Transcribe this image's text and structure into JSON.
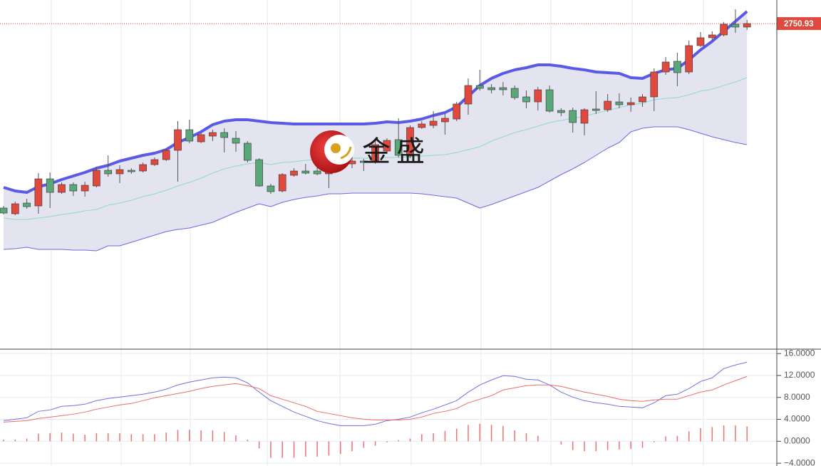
{
  "chart_data": [
    {
      "type": "candlestick",
      "ylim": [
        2294,
        2784
      ],
      "up_color": "#e0493e",
      "down_color": "#5aa77a",
      "open": [
        2492,
        2484,
        2499,
        2495,
        2533,
        2514,
        2525,
        2516,
        2523,
        2545,
        2540,
        2545,
        2544,
        2553,
        2560,
        2573,
        2602,
        2585,
        2593,
        2598,
        2590,
        2583,
        2560,
        2523,
        2516,
        2538,
        2544,
        2544,
        2540,
        2555,
        2554,
        2558,
        2557,
        2572,
        2588,
        2565,
        2605,
        2608,
        2613,
        2617,
        2638,
        2664,
        2661,
        2661,
        2660,
        2648,
        2641,
        2658,
        2629,
        2629,
        2611,
        2631,
        2630,
        2641,
        2637,
        2641,
        2648,
        2683,
        2698,
        2683,
        2720,
        2731,
        2735,
        2750,
        2746
      ],
      "high": [
        2495,
        2501,
        2505,
        2541,
        2542,
        2528,
        2528,
        2529,
        2550,
        2566,
        2552,
        2548,
        2556,
        2563,
        2576,
        2614,
        2616,
        2598,
        2602,
        2604,
        2600,
        2586,
        2562,
        2526,
        2541,
        2548,
        2554,
        2552,
        2566,
        2560,
        2564,
        2561,
        2589,
        2590,
        2618,
        2608,
        2614,
        2628,
        2624,
        2641,
        2674,
        2686,
        2666,
        2669,
        2664,
        2657,
        2662,
        2664,
        2632,
        2633,
        2632,
        2656,
        2652,
        2653,
        2647,
        2652,
        2688,
        2704,
        2710,
        2727,
        2739,
        2740,
        2753,
        2771,
        2756
      ],
      "low": [
        2483,
        2482,
        2491,
        2484,
        2492,
        2512,
        2509,
        2508,
        2521,
        2536,
        2527,
        2540,
        2542,
        2551,
        2558,
        2529,
        2583,
        2583,
        2586,
        2570,
        2571,
        2556,
        2522,
        2512,
        2514,
        2536,
        2539,
        2538,
        2520,
        2548,
        2548,
        2544,
        2554,
        2570,
        2563,
        2562,
        2603,
        2604,
        2595,
        2614,
        2623,
        2657,
        2653,
        2650,
        2644,
        2632,
        2629,
        2626,
        2621,
        2598,
        2594,
        2624,
        2627,
        2632,
        2627,
        2634,
        2628,
        2679,
        2663,
        2680,
        2718,
        2727,
        2733,
        2738,
        2742
      ],
      "close": [
        2485,
        2498,
        2494,
        2533,
        2514,
        2525,
        2516,
        2524,
        2545,
        2540,
        2546,
        2543,
        2553,
        2560,
        2573,
        2602,
        2586,
        2595,
        2598,
        2591,
        2583,
        2559,
        2523,
        2515,
        2539,
        2544,
        2541,
        2540,
        2555,
        2553,
        2558,
        2556,
        2581,
        2587,
        2566,
        2605,
        2610,
        2614,
        2618,
        2638,
        2664,
        2660,
        2658,
        2658,
        2647,
        2641,
        2658,
        2628,
        2626,
        2612,
        2630,
        2629,
        2642,
        2637,
        2640,
        2648,
        2683,
        2697,
        2682,
        2720,
        2731,
        2735,
        2750,
        2746,
        2750.93
      ],
      "band_fill": "#e4e4f1",
      "series": [
        {
          "color": "#5a5ae6",
          "style": "thick",
          "values": [
            2521,
            2516,
            2514,
            2522,
            2526,
            2532,
            2537,
            2542,
            2548,
            2552,
            2558,
            2562,
            2566,
            2569,
            2574,
            2584,
            2591,
            2599,
            2609,
            2614,
            2616,
            2616,
            2614,
            2612,
            2611,
            2610,
            2610,
            2610,
            2610,
            2610,
            2610,
            2610,
            2611,
            2613,
            2612,
            2614,
            2617,
            2622,
            2626,
            2634,
            2649,
            2664,
            2674,
            2681,
            2686,
            2689,
            2693,
            2693,
            2691,
            2688,
            2686,
            2683,
            2682,
            2681,
            2675,
            2674,
            2681,
            2686,
            2688,
            2700,
            2714,
            2726,
            2740,
            2754,
            2768
          ]
        },
        {
          "color": "#8fd9c6",
          "style": "thin",
          "values": [
            2478,
            2476,
            2476,
            2478,
            2480,
            2483,
            2485,
            2488,
            2490,
            2496,
            2499,
            2503,
            2508,
            2512,
            2517,
            2523,
            2528,
            2534,
            2541,
            2547,
            2551,
            2554,
            2556,
            2553,
            2556,
            2557,
            2559,
            2560,
            2561,
            2561,
            2562,
            2562,
            2562,
            2563,
            2563,
            2564,
            2565,
            2566,
            2567,
            2570,
            2574,
            2578,
            2586,
            2592,
            2598,
            2602,
            2607,
            2612,
            2615,
            2618,
            2621,
            2625,
            2629,
            2633,
            2637,
            2639,
            2644,
            2646,
            2647,
            2651,
            2656,
            2659,
            2664,
            2669,
            2675
          ]
        },
        {
          "color": "#6a6ae0",
          "style": "thin",
          "values": [
            2434,
            2435,
            2437,
            2434,
            2434,
            2434,
            2433,
            2433,
            2432,
            2439,
            2439,
            2444,
            2449,
            2454,
            2459,
            2462,
            2464,
            2468,
            2472,
            2479,
            2486,
            2492,
            2498,
            2494,
            2500,
            2504,
            2507,
            2509,
            2512,
            2512,
            2513,
            2513,
            2513,
            2513,
            2513,
            2513,
            2512,
            2510,
            2508,
            2506,
            2499,
            2492,
            2497,
            2503,
            2509,
            2515,
            2521,
            2530,
            2539,
            2547,
            2556,
            2566,
            2576,
            2584,
            2599,
            2604,
            2606,
            2606,
            2606,
            2602,
            2597,
            2592,
            2588,
            2584,
            2581
          ]
        }
      ],
      "price_line": 2750.93,
      "price_line_color": "#e0493e",
      "watermark": "金盛"
    },
    {
      "type": "macd",
      "ylim": [
        -4.5,
        16.8
      ],
      "yticks": [
        {
          "value": 16,
          "label": "16.0000"
        },
        {
          "value": 12,
          "label": "12.0000"
        },
        {
          "value": 8,
          "label": "8.0000"
        },
        {
          "value": 4,
          "label": "4.0000"
        },
        {
          "value": 0,
          "label": "0.0000"
        },
        {
          "value": -4,
          "label": "−4.0000"
        }
      ],
      "series": [
        {
          "color": "#7070e0",
          "style": "line",
          "values": [
            3.77,
            4.03,
            4.29,
            5.46,
            5.72,
            6.37,
            6.5,
            6.76,
            7.41,
            7.8,
            8.06,
            8.32,
            8.58,
            8.97,
            9.49,
            10.27,
            10.79,
            11.18,
            11.57,
            11.7,
            11.57,
            10.66,
            8.97,
            7.41,
            6.37,
            5.33,
            4.55,
            3.77,
            3.25,
            2.86,
            2.86,
            2.86,
            3.12,
            3.77,
            4.03,
            4.42,
            5.2,
            5.85,
            6.63,
            7.41,
            8.97,
            10.27,
            11.18,
            11.96,
            11.83,
            11.31,
            11.18,
            10.27,
            8.97,
            8.06,
            7.41,
            7.02,
            6.76,
            6.37,
            6.24,
            6.11,
            7.02,
            8.32,
            8.58,
            9.62,
            10.92,
            11.57,
            13.26,
            13.91,
            14.43
          ]
        },
        {
          "color": "#f06a6a",
          "style": "line",
          "values": [
            3.51,
            3.64,
            3.77,
            4.16,
            4.42,
            4.68,
            4.94,
            5.33,
            5.85,
            6.24,
            6.63,
            6.89,
            7.41,
            7.93,
            8.32,
            8.71,
            9.1,
            9.62,
            10.01,
            10.27,
            10.53,
            10.14,
            9.62,
            8.32,
            7.67,
            7.02,
            6.37,
            5.46,
            5.07,
            4.68,
            4.29,
            4.03,
            3.9,
            3.9,
            3.9,
            4.03,
            4.42,
            5.07,
            5.46,
            5.98,
            7.02,
            7.67,
            8.32,
            9.36,
            9.75,
            10.14,
            10.27,
            10.27,
            10.01,
            9.49,
            8.97,
            8.58,
            8.19,
            7.67,
            7.41,
            7.28,
            7.54,
            7.67,
            7.67,
            8.32,
            8.97,
            9.36,
            10.27,
            11.05,
            11.83
          ]
        },
        {
          "color": "#f07070",
          "style": "bar",
          "values": [
            0.3,
            0.3,
            0.5,
            1.4,
            1.5,
            1.6,
            1.4,
            1.2,
            1.5,
            1.5,
            1.5,
            1.3,
            1.3,
            1.3,
            1.6,
            2.1,
            2.1,
            2.0,
            2.0,
            1.7,
            1.1,
            0.3,
            -1.3,
            -3.0,
            -3.0,
            -3.0,
            -2.8,
            -2.8,
            -2.6,
            -2.3,
            -1.8,
            -1.2,
            -0.8,
            -0.2,
            0.2,
            0.5,
            1.3,
            1.5,
            1.9,
            2.3,
            3.0,
            3.2,
            3.0,
            2.8,
            2.0,
            1.5,
            1.0,
            0,
            -0.6,
            -1.6,
            -1.8,
            -1.8,
            -1.6,
            -1.5,
            -1.4,
            -1.2,
            -0.2,
            0.9,
            1.0,
            1.8,
            2.4,
            2.6,
            2.9,
            2.9,
            2.7
          ]
        }
      ]
    }
  ]
}
